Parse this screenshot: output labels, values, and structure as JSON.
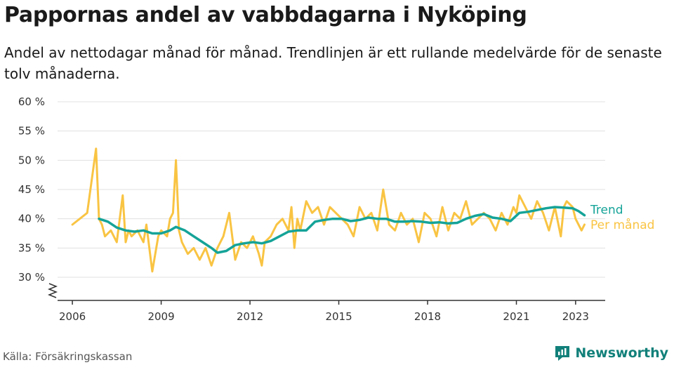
{
  "header": {
    "title": "Pappornas andel av vabbdagarna i Nyköping",
    "subtitle": "Andel av nettodagar månad för månad. Trendlinjen är ett rullande medelvärde för de senaste tolv månaderna."
  },
  "footer": {
    "source": "Källa: Försäkringskassan",
    "brand": "Newsworthy"
  },
  "colors": {
    "trend": "#15a398",
    "monthly": "#f9c443",
    "grid": "#e0e0e0",
    "brand": "#12807a"
  },
  "chart_data": {
    "type": "line",
    "ylim": [
      30,
      60
    ],
    "yticks": [
      30,
      35,
      40,
      45,
      50,
      55,
      60
    ],
    "ytick_labels": [
      "30 %",
      "35 %",
      "40 %",
      "45 %",
      "50 %",
      "55 %",
      "60 %"
    ],
    "y_axis_broken": true,
    "xlim": [
      2005.5,
      2024.0
    ],
    "xticks": [
      2006,
      2009,
      2012,
      2015,
      2018,
      2021,
      2023
    ],
    "xtick_labels": [
      "2006",
      "2009",
      "2012",
      "2015",
      "2018",
      "2021",
      "2023"
    ],
    "series": [
      {
        "name": "Per månad",
        "color": "#f9c443",
        "x": [
          2006.0,
          2006.5,
          2006.8,
          2006.9,
          2007.0,
          2007.1,
          2007.3,
          2007.5,
          2007.7,
          2007.8,
          2007.9,
          2008.0,
          2008.2,
          2008.4,
          2008.5,
          2008.6,
          2008.7,
          2008.9,
          2009.0,
          2009.2,
          2009.3,
          2009.4,
          2009.5,
          2009.6,
          2009.7,
          2009.8,
          2009.9,
          2010.1,
          2010.3,
          2010.5,
          2010.7,
          2010.9,
          2011.1,
          2011.3,
          2011.5,
          2011.7,
          2011.9,
          2012.1,
          2012.3,
          2012.4,
          2012.5,
          2012.7,
          2012.9,
          2013.1,
          2013.3,
          2013.4,
          2013.5,
          2013.6,
          2013.7,
          2013.9,
          2014.1,
          2014.3,
          2014.5,
          2014.7,
          2014.9,
          2015.1,
          2015.3,
          2015.5,
          2015.7,
          2015.9,
          2016.1,
          2016.3,
          2016.5,
          2016.7,
          2016.9,
          2017.1,
          2017.3,
          2017.5,
          2017.7,
          2017.9,
          2018.1,
          2018.3,
          2018.5,
          2018.7,
          2018.9,
          2019.1,
          2019.3,
          2019.5,
          2019.7,
          2019.9,
          2020.1,
          2020.3,
          2020.5,
          2020.7,
          2020.9,
          2021.0,
          2021.1,
          2021.3,
          2021.5,
          2021.7,
          2021.9,
          2022.1,
          2022.3,
          2022.5,
          2022.6,
          2022.7,
          2022.9,
          2023.0,
          2023.2,
          2023.3
        ],
        "values": [
          39,
          41,
          52,
          40,
          39,
          37,
          38,
          36,
          44,
          36,
          38,
          37,
          38,
          36,
          39,
          35,
          31,
          37,
          38,
          37,
          40,
          41,
          50,
          38,
          36,
          35,
          34,
          35,
          33,
          35,
          32,
          35,
          37,
          41,
          33,
          36,
          35,
          37,
          34,
          32,
          36,
          37,
          39,
          40,
          38,
          42,
          35,
          40,
          38,
          43,
          41,
          42,
          39,
          42,
          41,
          40,
          39,
          37,
          42,
          40,
          41,
          38,
          45,
          39,
          38,
          41,
          39,
          40,
          36,
          41,
          40,
          37,
          42,
          38,
          41,
          40,
          43,
          39,
          40,
          41,
          40,
          38,
          41,
          39,
          42,
          41,
          44,
          42,
          40,
          43,
          41,
          38,
          42,
          37,
          42,
          43,
          42,
          40,
          38,
          39
        ]
      },
      {
        "name": "Trend",
        "color": "#15a398",
        "x": [
          2006.9,
          2007.2,
          2007.5,
          2007.8,
          2008.1,
          2008.4,
          2008.7,
          2009.0,
          2009.3,
          2009.5,
          2009.8,
          2010.1,
          2010.4,
          2010.7,
          2010.9,
          2011.2,
          2011.5,
          2011.8,
          2012.1,
          2012.4,
          2012.7,
          2013.0,
          2013.3,
          2013.6,
          2013.9,
          2014.2,
          2014.5,
          2014.8,
          2015.1,
          2015.4,
          2015.7,
          2016.0,
          2016.3,
          2016.6,
          2016.9,
          2017.2,
          2017.5,
          2017.8,
          2018.1,
          2018.4,
          2018.7,
          2019.0,
          2019.3,
          2019.6,
          2019.9,
          2020.2,
          2020.5,
          2020.8,
          2021.1,
          2021.4,
          2021.7,
          2022.0,
          2022.3,
          2022.6,
          2022.9,
          2023.1,
          2023.3
        ],
        "values": [
          40.0,
          39.5,
          38.5,
          38.0,
          37.8,
          38.0,
          37.5,
          37.5,
          38.0,
          38.6,
          38.0,
          37.0,
          36.0,
          35.0,
          34.2,
          34.5,
          35.5,
          35.8,
          36.0,
          35.8,
          36.2,
          37.0,
          37.8,
          38.0,
          38.0,
          39.5,
          39.8,
          40.0,
          40.0,
          39.6,
          39.8,
          40.2,
          40.0,
          40.0,
          39.5,
          39.5,
          39.6,
          39.5,
          39.3,
          39.4,
          39.2,
          39.3,
          40.0,
          40.5,
          40.8,
          40.2,
          40.0,
          39.6,
          41.0,
          41.2,
          41.5,
          41.8,
          42.0,
          41.9,
          41.8,
          41.3,
          40.6
        ]
      }
    ]
  }
}
